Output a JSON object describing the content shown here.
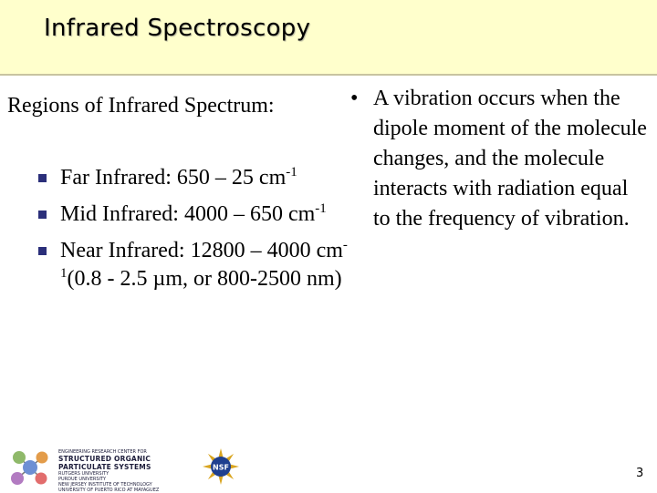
{
  "header": {
    "title": "Infrared Spectroscopy"
  },
  "regions": {
    "heading": "Regions of Infrared Spectrum:",
    "items": [
      {
        "text": "Far Infrared: 650 – 25 cm",
        "sup": "-1",
        "tail": ""
      },
      {
        "text": "Mid Infrared: 4000 – 650 cm",
        "sup": "-1",
        "tail": ""
      },
      {
        "text": "Near Infrared: 12800 – 4000 cm",
        "sup": "-1",
        "tail": "(0.8 - 2.5 µm, or 800-2500 nm)"
      }
    ]
  },
  "vibration": {
    "bullet": "•",
    "text": "A vibration occurs when the dipole moment of the molecule changes, and the molecule interacts with radiation equal to the frequency of vibration."
  },
  "footer": {
    "logo_line1": "ENGINEERING RESEARCH CENTER FOR",
    "logo_line2": "STRUCTURED ORGANIC PARTICULATE SYSTEMS",
    "institutions": [
      "RUTGERS UNIVERSITY",
      "PURDUE UNIVERSITY",
      "NEW JERSEY INSTITUTE OF TECHNOLOGY",
      "UNIVERSITY OF PUERTO RICO AT MAYAGUEZ"
    ],
    "nsf_label": "NSF",
    "page_number": "3"
  },
  "colors": {
    "title_bar": "#ffffcc",
    "bullet": "#2b2f7a"
  }
}
